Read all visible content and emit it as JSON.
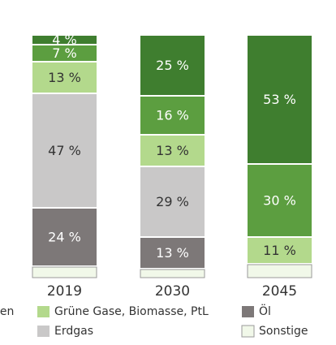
{
  "chart_data": {
    "type": "stacked_bar",
    "categories": [
      "2019",
      "2030",
      "2045"
    ],
    "ylim": [
      0,
      100
    ],
    "series": [
      {
        "name": "Sonstige",
        "color": "#f1f8e9",
        "border": "#9a9a9a",
        "values": [
          5,
          4,
          6
        ]
      },
      {
        "name": "Öl",
        "color": "#7d7878",
        "label_color": "#ffffff",
        "values": [
          24,
          13,
          null
        ],
        "value_labels": [
          "24 %",
          "13 %",
          null
        ]
      },
      {
        "name": "Erdgas",
        "color": "#c9c8c8",
        "label_color": "#333333",
        "values": [
          47,
          29,
          null
        ],
        "value_labels": [
          "47 %",
          "29 %",
          null
        ]
      },
      {
        "name": "Grüne Gase, Biomasse, PtL",
        "color": "#b3d98c",
        "label_color": "#333333",
        "values": [
          13,
          13,
          11
        ],
        "value_labels": [
          "13 %",
          "13 %",
          "11 %"
        ]
      },
      {
        "color": "#5c9e40",
        "label_color": "#ffffff",
        "values": [
          7,
          16,
          30
        ],
        "value_labels": [
          "7 %",
          "16 %",
          "30 %"
        ]
      },
      {
        "name": "pen",
        "color": "#3f7e2f",
        "label_color": "#ffffff",
        "values": [
          4,
          25,
          53
        ],
        "value_labels": [
          "4 %",
          "25 %",
          "53 %"
        ]
      }
    ]
  }
}
